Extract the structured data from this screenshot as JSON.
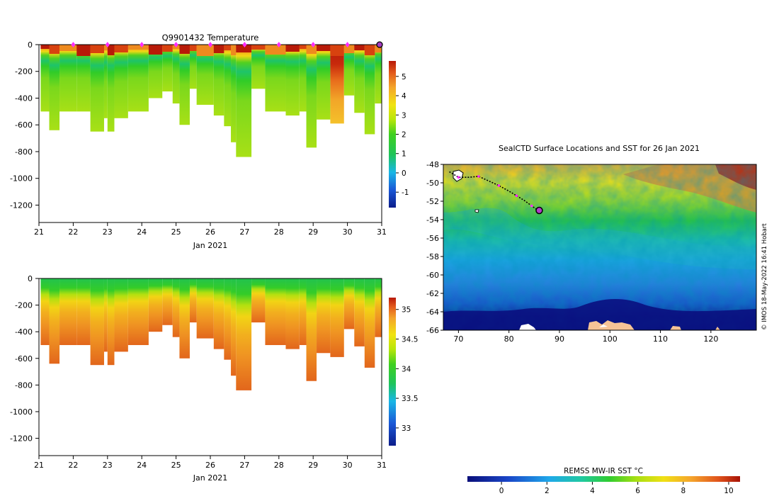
{
  "chart_data": [
    {
      "type": "heatmap",
      "title": "Q9901432  Temperature",
      "xlabel": "Jan 2021",
      "ylabel": "",
      "x_ticks": [
        "21",
        "22",
        "23",
        "24",
        "25",
        "26",
        "27",
        "28",
        "29",
        "30",
        "31"
      ],
      "x_range": [
        21,
        31
      ],
      "y_ticks": [
        "0",
        "-200",
        "-400",
        "-600",
        "-800",
        "-1000",
        "-1200"
      ],
      "y_range": [
        -1330,
        0
      ],
      "colorbar_ticks": [
        "-1",
        "0",
        "1",
        "2",
        "3",
        "4",
        "5"
      ],
      "colorbar_range": [
        -1.8,
        5.8
      ],
      "profile_markers": [
        "22",
        "23",
        "24",
        "25",
        "26",
        "27",
        "28",
        "29",
        "30"
      ],
      "last_profile_day": 31,
      "max_depth_profile": [
        {
          "day": 21.05,
          "depth": -500
        },
        {
          "day": 21.3,
          "depth": -640
        },
        {
          "day": 21.6,
          "depth": -500
        },
        {
          "day": 22.1,
          "depth": -500
        },
        {
          "day": 22.5,
          "depth": -650
        },
        {
          "day": 22.9,
          "depth": -550
        },
        {
          "day": 23.0,
          "depth": -650
        },
        {
          "day": 23.2,
          "depth": -550
        },
        {
          "day": 23.6,
          "depth": -500
        },
        {
          "day": 24.2,
          "depth": -400
        },
        {
          "day": 24.6,
          "depth": -350
        },
        {
          "day": 24.9,
          "depth": -440
        },
        {
          "day": 25.1,
          "depth": -600
        },
        {
          "day": 25.4,
          "depth": -330
        },
        {
          "day": 25.6,
          "depth": -450
        },
        {
          "day": 26.1,
          "depth": -530
        },
        {
          "day": 26.4,
          "depth": -610
        },
        {
          "day": 26.6,
          "depth": -730
        },
        {
          "day": 26.75,
          "depth": -840
        },
        {
          "day": 27.2,
          "depth": -330
        },
        {
          "day": 27.6,
          "depth": -500
        },
        {
          "day": 28.2,
          "depth": -530
        },
        {
          "day": 28.6,
          "depth": -500
        },
        {
          "day": 28.8,
          "depth": -770
        },
        {
          "day": 29.1,
          "depth": -560
        },
        {
          "day": 29.5,
          "depth": -590
        },
        {
          "day": 29.9,
          "depth": -380
        },
        {
          "day": 30.2,
          "depth": -510
        },
        {
          "day": 30.5,
          "depth": -670
        },
        {
          "day": 30.8,
          "depth": -440
        }
      ]
    },
    {
      "type": "heatmap",
      "title": "",
      "xlabel": "Jan 2021",
      "ylabel": "",
      "x_ticks": [
        "21",
        "22",
        "23",
        "24",
        "25",
        "26",
        "27",
        "28",
        "29",
        "30",
        "31"
      ],
      "x_range": [
        21,
        31
      ],
      "y_ticks": [
        "0",
        "-200",
        "-400",
        "-600",
        "-800",
        "-1000",
        "-1200"
      ],
      "y_range": [
        -1330,
        0
      ],
      "colorbar_ticks": [
        "33",
        "33.5",
        "34",
        "34.5",
        "35"
      ],
      "colorbar_range": [
        32.7,
        35.2
      ]
    },
    {
      "type": "heatmap",
      "title": "SealCTD Surface Locations and SST for 26 Jan 2021",
      "xlabel": "",
      "ylabel": "",
      "x_ticks": [
        "70",
        "80",
        "90",
        "100",
        "110",
        "120"
      ],
      "x_range": [
        67,
        129
      ],
      "y_ticks": [
        "-48",
        "-50",
        "-52",
        "-54",
        "-56",
        "-58",
        "-60",
        "-62",
        "-64",
        "-66"
      ],
      "y_range": [
        -66,
        -48
      ],
      "colorbar_label": "REMSS MW-IR SST °C",
      "colorbar_ticks": [
        "0",
        "2",
        "4",
        "6",
        "8",
        "10"
      ],
      "colorbar_range": [
        -1.5,
        10.5
      ],
      "track": [
        {
          "lon": 68.2,
          "lat": -48.8
        },
        {
          "lon": 70.0,
          "lat": -49.4
        },
        {
          "lon": 72.0,
          "lat": -49.4
        },
        {
          "lon": 74.0,
          "lat": -49.3
        },
        {
          "lon": 76.0,
          "lat": -49.8
        },
        {
          "lon": 78.0,
          "lat": -50.3
        },
        {
          "lon": 80.0,
          "lat": -50.9
        },
        {
          "lon": 81.5,
          "lat": -51.4
        },
        {
          "lon": 83.0,
          "lat": -51.9
        },
        {
          "lon": 84.5,
          "lat": -52.5
        },
        {
          "lon": 85.5,
          "lat": -52.9
        },
        {
          "lon": 86.0,
          "lat": -53.0
        }
      ],
      "current_position": {
        "lon": 86.0,
        "lat": -53.0
      }
    }
  ],
  "credit": "© IMOS 18-May-2022 16:41 Hobart"
}
